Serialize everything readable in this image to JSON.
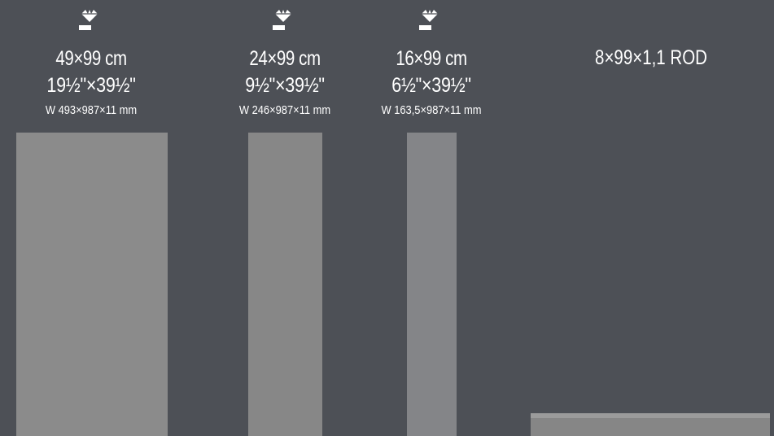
{
  "colors": {
    "background": "#4d5056",
    "panel": "#8b8b8b",
    "rod": "#868686",
    "text": "#ffffff"
  },
  "tiles": [
    {
      "icon": "diamond-icon",
      "size_cm": "49×99 cm",
      "size_in": "19½\"×39½\"",
      "size_mm": "W 493×987×11 mm"
    },
    {
      "icon": "diamond-icon",
      "size_cm": "24×99 cm",
      "size_in": "9½\"×39½\"",
      "size_mm": "W 246×987×11 mm"
    },
    {
      "icon": "diamond-icon",
      "size_cm": "16×99 cm",
      "size_in": "6½\"×39½\"",
      "size_mm": "W 163,5×987×11 mm"
    }
  ],
  "rod": {
    "label": "8×99×1,1 ROD"
  }
}
